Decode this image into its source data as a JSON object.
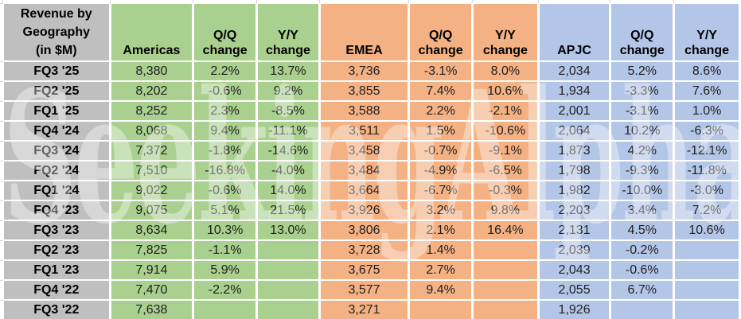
{
  "colors": {
    "label_gray": "#bfbfbf",
    "americas_green": "#a9d08e",
    "emea_orange": "#f4b183",
    "apjc_blue": "#b4c6e7",
    "cell_gap_white": "#ffffff",
    "text_black": "#000000"
  },
  "watermark": {
    "brand": "SeekingAlpha",
    "alpha_glyph": "α"
  },
  "chart_data": {
    "type": "table",
    "title": "Revenue by Geography (in $M)",
    "title_lines": [
      "Revenue by",
      "Geography",
      "(in $M)"
    ],
    "column_groups": [
      "Americas",
      "EMEA",
      "APJC"
    ],
    "headers": [
      "Americas",
      "Q/Q change",
      "Y/Y change",
      "EMEA",
      "Q/Q change",
      "Y/Y change",
      "APJC",
      "Q/Q change",
      "Y/Y change"
    ],
    "rows": [
      [
        "FQ3 '25",
        "8,380",
        "2.2%",
        "13.7%",
        "3,736",
        "-3.1%",
        "8.0%",
        "2,034",
        "5.2%",
        "8.6%"
      ],
      [
        "FQ2 '25",
        "8,202",
        "-0.6%",
        "9.2%",
        "3,855",
        "7.4%",
        "10.6%",
        "1,934",
        "-3.3%",
        "7.6%"
      ],
      [
        "FQ1 '25",
        "8,252",
        "2.3%",
        "-8.5%",
        "3,588",
        "2.2%",
        "-2.1%",
        "2,001",
        "-3.1%",
        "1.0%"
      ],
      [
        "FQ4 '24",
        "8,068",
        "9.4%",
        "-11.1%",
        "3,511",
        "1.5%",
        "-10.6%",
        "2,064",
        "10.2%",
        "-6.3%"
      ],
      [
        "FQ3 '24",
        "7,372",
        "-1.8%",
        "-14.6%",
        "3,458",
        "-0.7%",
        "-9.1%",
        "1,873",
        "4.2%",
        "-12.1%"
      ],
      [
        "FQ2 '24",
        "7,510",
        "-16.8%",
        "-4.0%",
        "3,484",
        "-4.9%",
        "-6.5%",
        "1,798",
        "-9.3%",
        "-11.8%"
      ],
      [
        "FQ1 '24",
        "9,022",
        "-0.6%",
        "14.0%",
        "3,664",
        "-6.7%",
        "-0.3%",
        "1,982",
        "-10.0%",
        "-3.0%"
      ],
      [
        "FQ4 '23",
        "9,075",
        "5.1%",
        "21.5%",
        "3,926",
        "3.2%",
        "9.8%",
        "2,203",
        "3.4%",
        "7.2%"
      ],
      [
        "FQ3 '23",
        "8,634",
        "10.3%",
        "13.0%",
        "3,806",
        "2.1%",
        "16.4%",
        "2,131",
        "4.5%",
        "10.6%"
      ],
      [
        "FQ2 '23",
        "7,825",
        "-1.1%",
        "",
        "3,728",
        "1.4%",
        "",
        "2,039",
        "-0.2%",
        ""
      ],
      [
        "FQ1 '23",
        "7,914",
        "5.9%",
        "",
        "3,675",
        "2.7%",
        "",
        "2,043",
        "-0.6%",
        ""
      ],
      [
        "FQ4 '22",
        "7,470",
        "-2.2%",
        "",
        "3,577",
        "9.4%",
        "",
        "2,055",
        "6.7%",
        ""
      ],
      [
        "FQ3 '22",
        "7,638",
        "",
        "",
        "3,271",
        "",
        "",
        "1,926",
        "",
        ""
      ]
    ]
  }
}
